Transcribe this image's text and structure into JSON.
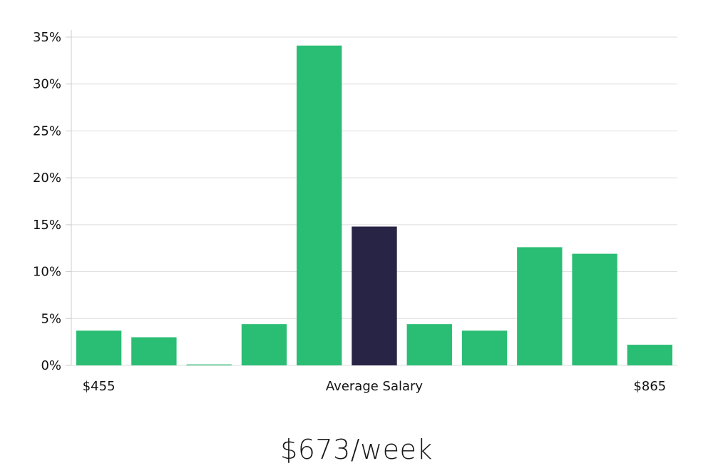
{
  "chart_data": {
    "type": "bar",
    "categories": [
      "$455",
      "",
      "",
      "",
      "",
      "Average Salary",
      "",
      "",
      "",
      "",
      "$865"
    ],
    "values": [
      3.7,
      3.0,
      0.1,
      4.4,
      34.1,
      14.8,
      4.4,
      3.7,
      12.6,
      11.9,
      2.2
    ],
    "highlight_index": 5,
    "ylim": [
      0,
      35
    ],
    "yticks": [
      0,
      5,
      10,
      15,
      20,
      25,
      30,
      35
    ],
    "ytick_labels": [
      "0%",
      "5%",
      "10%",
      "15%",
      "20%",
      "25%",
      "30%",
      "35%"
    ],
    "grid": true,
    "colors": {
      "bar": "#2abd74",
      "highlight": "#272446",
      "grid": "#dddddd"
    }
  },
  "summary": {
    "headline": "$673/week"
  }
}
